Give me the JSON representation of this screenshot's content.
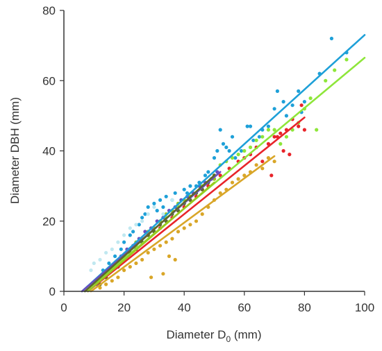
{
  "chart_data": {
    "type": "scatter",
    "xlabel": "Diameter D",
    "xlabel_subscript": "0",
    "xlabel_suffix": " (mm)",
    "ylabel": "Diameter DBH (mm)",
    "xlim": [
      0,
      100
    ],
    "ylim": [
      0,
      80
    ],
    "x_ticks": [
      0,
      20,
      40,
      60,
      80,
      100
    ],
    "y_ticks": [
      0,
      20,
      40,
      60,
      80
    ],
    "grid": false,
    "series": [
      {
        "color": "#1ea0d8",
        "fit": [
          [
            6,
            0
          ],
          [
            100,
            73
          ]
        ],
        "points": [
          [
            11,
            3
          ],
          [
            13,
            6
          ],
          [
            15,
            8
          ],
          [
            17,
            10
          ],
          [
            19,
            12
          ],
          [
            20,
            14
          ],
          [
            22,
            16
          ],
          [
            23,
            17
          ],
          [
            25,
            19
          ],
          [
            26,
            21
          ],
          [
            27,
            22
          ],
          [
            28,
            24
          ],
          [
            30,
            25
          ],
          [
            31,
            23
          ],
          [
            32,
            26
          ],
          [
            33,
            24
          ],
          [
            34,
            27
          ],
          [
            36,
            26
          ],
          [
            37,
            28
          ],
          [
            38,
            24
          ],
          [
            39,
            26
          ],
          [
            40,
            29
          ],
          [
            41,
            28
          ],
          [
            42,
            30
          ],
          [
            44,
            30
          ],
          [
            45,
            31
          ],
          [
            47,
            33
          ],
          [
            48,
            34
          ],
          [
            50,
            38
          ],
          [
            51,
            40
          ],
          [
            52,
            46
          ],
          [
            53,
            42
          ],
          [
            54,
            41
          ],
          [
            55,
            40
          ],
          [
            56,
            44
          ],
          [
            57,
            38
          ],
          [
            59,
            40
          ],
          [
            61,
            47
          ],
          [
            62,
            47
          ],
          [
            63,
            43
          ],
          [
            65,
            44
          ],
          [
            66,
            46
          ],
          [
            68,
            47
          ],
          [
            70,
            52
          ],
          [
            71,
            57
          ],
          [
            73,
            54
          ],
          [
            74,
            50
          ],
          [
            76,
            53
          ],
          [
            78,
            57
          ],
          [
            79,
            51
          ],
          [
            80,
            54
          ],
          [
            85,
            62
          ],
          [
            89,
            72
          ],
          [
            94,
            68
          ]
        ]
      },
      {
        "color": "#8ee63a",
        "fit": [
          [
            7,
            0
          ],
          [
            100,
            66.5
          ]
        ],
        "points": [
          [
            12,
            2
          ],
          [
            14,
            4
          ],
          [
            16,
            6
          ],
          [
            18,
            8
          ],
          [
            20,
            10
          ],
          [
            22,
            11
          ],
          [
            24,
            13
          ],
          [
            26,
            15
          ],
          [
            28,
            16
          ],
          [
            30,
            18
          ],
          [
            32,
            20
          ],
          [
            34,
            21
          ],
          [
            36,
            22
          ],
          [
            38,
            24
          ],
          [
            40,
            25
          ],
          [
            42,
            27
          ],
          [
            44,
            28
          ],
          [
            46,
            30
          ],
          [
            48,
            31
          ],
          [
            50,
            33
          ],
          [
            52,
            36
          ],
          [
            54,
            37
          ],
          [
            56,
            38
          ],
          [
            58,
            39
          ],
          [
            60,
            40
          ],
          [
            62,
            41
          ],
          [
            64,
            43
          ],
          [
            66,
            44
          ],
          [
            68,
            46
          ],
          [
            70,
            46
          ],
          [
            72,
            42
          ],
          [
            74,
            44
          ],
          [
            76,
            46
          ],
          [
            78,
            48
          ],
          [
            80,
            52
          ],
          [
            82,
            55
          ],
          [
            84,
            46
          ],
          [
            87,
            60
          ],
          [
            90,
            63
          ],
          [
            94,
            66
          ]
        ]
      },
      {
        "color": "#e8242a",
        "fit": [
          [
            8,
            0
          ],
          [
            80,
            49.5
          ]
        ],
        "points": [
          [
            14,
            4
          ],
          [
            16,
            6
          ],
          [
            18,
            7
          ],
          [
            20,
            9
          ],
          [
            22,
            11
          ],
          [
            24,
            12
          ],
          [
            26,
            14
          ],
          [
            28,
            16
          ],
          [
            30,
            17
          ],
          [
            32,
            18
          ],
          [
            34,
            20
          ],
          [
            36,
            21
          ],
          [
            38,
            23
          ],
          [
            40,
            24
          ],
          [
            42,
            26
          ],
          [
            44,
            27
          ],
          [
            46,
            29
          ],
          [
            48,
            30
          ],
          [
            50,
            32
          ],
          [
            52,
            33
          ],
          [
            55,
            35
          ],
          [
            58,
            37
          ],
          [
            60,
            38
          ],
          [
            62,
            39
          ],
          [
            64,
            41
          ],
          [
            66,
            37
          ],
          [
            68,
            42
          ],
          [
            69,
            33
          ],
          [
            70,
            44
          ],
          [
            71,
            44
          ],
          [
            72,
            45
          ],
          [
            73,
            40
          ],
          [
            74,
            46
          ],
          [
            75,
            39
          ],
          [
            76,
            49
          ],
          [
            78,
            47
          ],
          [
            79,
            53
          ],
          [
            80,
            46
          ]
        ]
      },
      {
        "color": "#d9a628",
        "fit": [
          [
            9,
            0
          ],
          [
            70,
            38.5
          ]
        ],
        "points": [
          [
            12,
            1
          ],
          [
            14,
            2
          ],
          [
            16,
            3
          ],
          [
            18,
            4
          ],
          [
            20,
            6
          ],
          [
            22,
            7
          ],
          [
            24,
            8
          ],
          [
            26,
            9
          ],
          [
            28,
            11
          ],
          [
            29,
            4
          ],
          [
            30,
            12
          ],
          [
            32,
            13
          ],
          [
            33,
            5
          ],
          [
            34,
            14
          ],
          [
            35,
            10
          ],
          [
            36,
            15
          ],
          [
            37,
            9
          ],
          [
            38,
            17
          ],
          [
            40,
            18
          ],
          [
            42,
            19
          ],
          [
            44,
            20
          ],
          [
            46,
            22
          ],
          [
            48,
            24
          ],
          [
            50,
            26
          ],
          [
            52,
            28
          ],
          [
            54,
            29
          ],
          [
            56,
            31
          ],
          [
            58,
            32
          ],
          [
            60,
            33
          ],
          [
            62,
            34
          ],
          [
            64,
            36
          ],
          [
            66,
            35
          ],
          [
            68,
            38
          ],
          [
            70,
            37
          ]
        ]
      },
      {
        "color": "#9ac81e",
        "fit": [
          [
            8,
            0
          ],
          [
            50,
            31
          ]
        ],
        "points": [
          [
            12,
            2
          ],
          [
            14,
            4
          ],
          [
            16,
            6
          ],
          [
            18,
            8
          ],
          [
            20,
            10
          ],
          [
            22,
            12
          ],
          [
            24,
            14
          ],
          [
            26,
            15
          ],
          [
            28,
            17
          ],
          [
            30,
            18
          ],
          [
            32,
            20
          ],
          [
            34,
            22
          ],
          [
            36,
            23
          ],
          [
            38,
            25
          ],
          [
            40,
            26
          ],
          [
            42,
            27
          ],
          [
            44,
            28
          ],
          [
            46,
            29
          ],
          [
            48,
            31
          ],
          [
            50,
            32
          ]
        ]
      },
      {
        "color": "#6a4dbf",
        "fit": [
          [
            6,
            0
          ],
          [
            52,
            34
          ]
        ],
        "points": [
          [
            11,
            2
          ],
          [
            13,
            4
          ],
          [
            15,
            6
          ],
          [
            17,
            8
          ],
          [
            19,
            10
          ],
          [
            21,
            12
          ],
          [
            23,
            13
          ],
          [
            25,
            15
          ],
          [
            27,
            17
          ],
          [
            29,
            18
          ],
          [
            31,
            20
          ],
          [
            33,
            21
          ],
          [
            35,
            23
          ],
          [
            37,
            24
          ],
          [
            39,
            26
          ],
          [
            41,
            27
          ],
          [
            43,
            28
          ],
          [
            45,
            30
          ],
          [
            47,
            31
          ],
          [
            49,
            32
          ],
          [
            51,
            34
          ]
        ]
      },
      {
        "color": "#5f6a2a",
        "fit": [
          [
            7,
            0
          ],
          [
            50,
            33
          ]
        ],
        "points": [
          [
            12,
            2
          ],
          [
            14,
            4
          ],
          [
            16,
            6
          ],
          [
            18,
            7
          ],
          [
            20,
            9
          ],
          [
            22,
            11
          ],
          [
            24,
            12
          ],
          [
            26,
            14
          ],
          [
            28,
            16
          ],
          [
            30,
            17
          ],
          [
            32,
            19
          ],
          [
            34,
            20
          ],
          [
            36,
            22
          ],
          [
            38,
            23
          ],
          [
            40,
            25
          ],
          [
            42,
            26
          ],
          [
            44,
            28
          ],
          [
            46,
            29
          ],
          [
            48,
            31
          ],
          [
            50,
            33
          ]
        ]
      },
      {
        "color": "#c0e8f0",
        "fit": null,
        "points": [
          [
            9,
            6
          ],
          [
            10,
            8
          ],
          [
            12,
            9
          ],
          [
            14,
            11
          ],
          [
            16,
            12
          ],
          [
            18,
            14
          ],
          [
            20,
            16
          ],
          [
            22,
            18
          ],
          [
            24,
            19
          ],
          [
            26,
            20
          ],
          [
            28,
            22
          ],
          [
            30,
            24
          ],
          [
            33,
            22
          ],
          [
            36,
            26
          ],
          [
            39,
            25
          ]
        ]
      }
    ]
  }
}
